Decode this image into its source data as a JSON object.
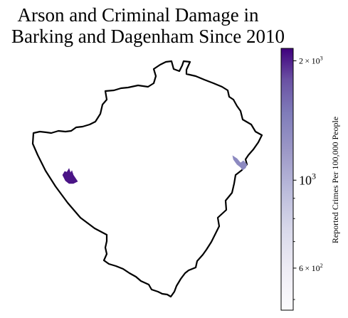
{
  "title": {
    "line1": "Arson and Criminal Damage in",
    "line2": "Barking and Dagenham Since 2010"
  },
  "colorbar": {
    "label": "Reported Crimes Per 100,000 People",
    "scale": "log",
    "colormap": "Purples",
    "range": [
      470,
      2150
    ],
    "ticks": [
      {
        "value": 2000,
        "mantissa": "2",
        "base": "10",
        "exponent": "3"
      },
      {
        "value": 1000,
        "mantissa": "",
        "base": "10",
        "exponent": "3"
      },
      {
        "value": 600,
        "mantissa": "6",
        "base": "10",
        "exponent": "2"
      }
    ],
    "minor_ticks": [
      500,
      700,
      800,
      900
    ]
  },
  "map": {
    "borough": "Barking and Dagenham",
    "outline_color": "#000000",
    "regions": [
      {
        "name": "west-edge-area",
        "value": 2050,
        "color": "#4a1486"
      },
      {
        "name": "east-edge-area",
        "value": 1050,
        "color": "#8c89c0"
      }
    ]
  }
}
